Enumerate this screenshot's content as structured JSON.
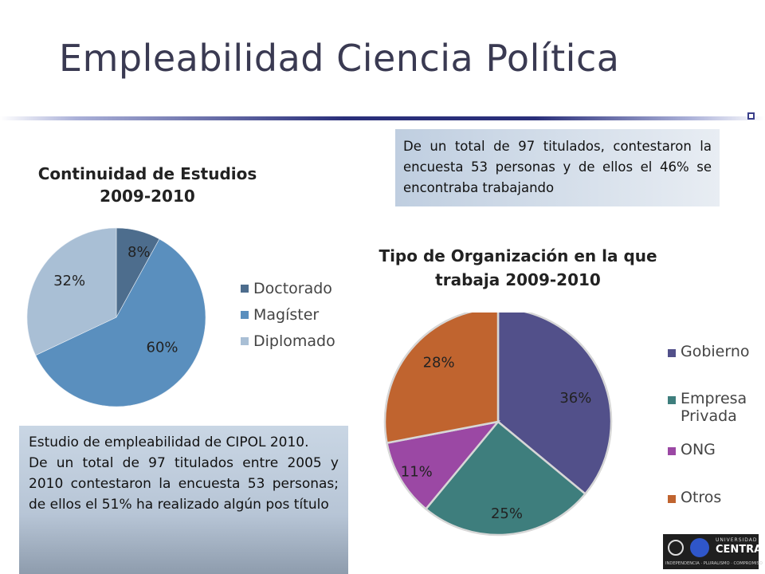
{
  "slide": {
    "title": "Empleabilidad Ciencia Política",
    "note_top": "De un total de 97 titulados, contestaron la encuesta 53 personas y de ellos el 46% se encontraba trabajando",
    "note_bottom": {
      "line1": "Estudio de empleabilidad de CIPOL 2010.",
      "line2": "De un total de 97 titulados entre 2005 y 2010 contestaron la encuesta 53 personas; de ellos el 51% ha realizado algún pos título"
    },
    "logo": {
      "brand_top": "UNIVERSIDAD",
      "brand": "CENTRAL",
      "motto": "INDEPENDENCIA · PLURALISMO · COMPROMISO"
    }
  },
  "chart_data": [
    {
      "type": "pie",
      "title": "Continuidad de Estudios 2009-2010",
      "title_lines": [
        "Continuidad de Estudios",
        "2009-2010"
      ],
      "categories": [
        "Doctorado",
        "Magíster",
        "Diplomado"
      ],
      "values": [
        8,
        60,
        32
      ],
      "labels": [
        "8%",
        "60%",
        "32%"
      ],
      "colors": [
        "#4d6d8d",
        "#5a8fbe",
        "#a9bfd5"
      ],
      "legend_position": "right"
    },
    {
      "type": "pie",
      "title": "Tipo de Organización en la que trabaja 2009-2010",
      "title_lines": [
        "Tipo de Organización en la que",
        "trabaja 2009-2010"
      ],
      "categories": [
        "Gobierno",
        "Empresa Privada",
        "ONG",
        "Otros"
      ],
      "legend_lines": [
        [
          "Gobierno"
        ],
        [
          "Empresa",
          "Privada"
        ],
        [
          "ONG"
        ],
        [
          "Otros"
        ]
      ],
      "values": [
        36,
        25,
        11,
        28
      ],
      "labels": [
        "36%",
        "25%",
        "11%",
        "28%"
      ],
      "colors": [
        "#52508a",
        "#3e7e7d",
        "#9b48a4",
        "#c0642f"
      ],
      "legend_position": "right"
    }
  ]
}
